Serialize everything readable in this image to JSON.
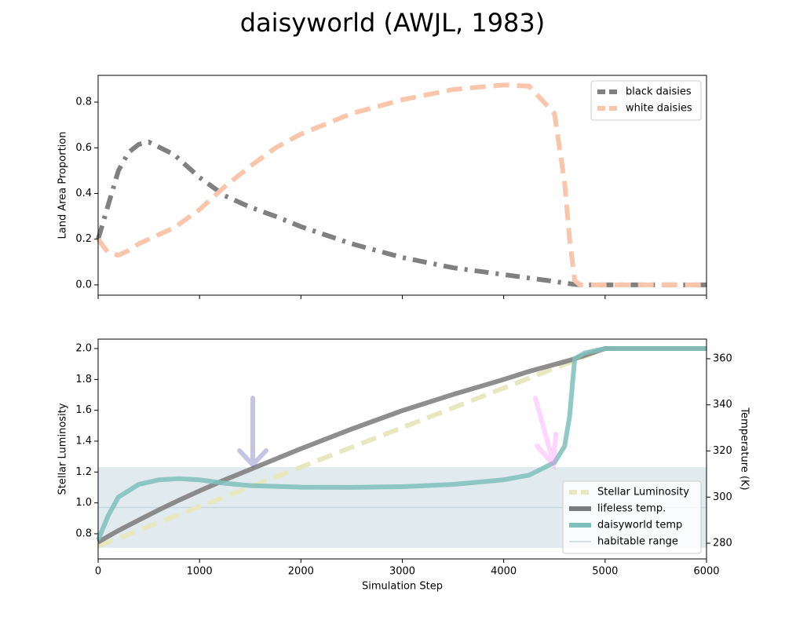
{
  "chart_data": [
    {
      "type": "line",
      "title": "daisyworld (AWJL, 1983)",
      "ylabel": "Land Area Proportion",
      "x": [
        0,
        100,
        200,
        300,
        400,
        500,
        750,
        1000,
        1250,
        1500,
        1750,
        2000,
        2500,
        3000,
        3500,
        4000,
        4250,
        4500,
        4600,
        4650,
        4700,
        4750,
        5000,
        5500,
        6000
      ],
      "series": [
        {
          "name": "black daisies",
          "color": "#808080",
          "dash": "dashdot",
          "values": [
            0.2,
            0.35,
            0.5,
            0.58,
            0.615,
            0.625,
            0.57,
            0.47,
            0.39,
            0.34,
            0.3,
            0.255,
            0.18,
            0.12,
            0.075,
            0.045,
            0.03,
            0.015,
            0.008,
            0.005,
            0.002,
            0,
            0,
            0,
            0
          ]
        },
        {
          "name": "white daisies",
          "color": "#f9c6ab",
          "dash": "dashed",
          "values": [
            0.2,
            0.14,
            0.13,
            0.15,
            0.18,
            0.2,
            0.25,
            0.33,
            0.43,
            0.52,
            0.6,
            0.66,
            0.75,
            0.81,
            0.855,
            0.875,
            0.87,
            0.75,
            0.45,
            0.2,
            0.02,
            0,
            0,
            0,
            0
          ]
        }
      ],
      "xlim": [
        0,
        6000
      ],
      "xticks": [
        0,
        1000,
        2000,
        3000,
        4000,
        5000,
        6000
      ],
      "ylim": [
        -0.045,
        0.917
      ],
      "yticks": [
        {
          "value": 0,
          "label": "0.0"
        },
        0.2,
        0.4,
        0.6,
        0.8
      ],
      "legend": "upper right"
    },
    {
      "type": "line",
      "xlabel": "Simulation Step",
      "ylabel": "Stellar Luminosity",
      "y2label": "Temperature (K)",
      "x": [
        0,
        100,
        200,
        400,
        600,
        800,
        1000,
        1250,
        1500,
        2000,
        2500,
        3000,
        3500,
        4000,
        4250,
        4500,
        4600,
        4650,
        4700,
        4800,
        5000,
        6000
      ],
      "series": [
        {
          "name": "Stellar Luminosity",
          "color": "#e7e8c0",
          "dash": "dashed",
          "values": [
            0.72,
            0.746,
            0.771,
            0.822,
            0.874,
            0.925,
            0.976,
            1.04,
            1.104,
            1.232,
            1.36,
            1.488,
            1.616,
            1.744,
            1.808,
            1.872,
            1.898,
            1.91,
            1.923,
            1.949,
            2.0,
            2.0
          ]
        },
        {
          "name": "lifeless temp.",
          "color": "#7a7a7a",
          "dash": "solid",
          "axis": "y2",
          "values": [
            280.5,
            283,
            285.5,
            290,
            294.5,
            298.7,
            302.7,
            307.5,
            312,
            321,
            329.5,
            337.5,
            344.5,
            351,
            354.5,
            357.5,
            358.7,
            359.3,
            360,
            361.5,
            364.4,
            364.4
          ]
        },
        {
          "name": "daisyworld temp",
          "color": "#7fbfbb",
          "dash": "solid",
          "axis": "y2",
          "values": [
            281.4,
            292,
            300,
            305.5,
            307.5,
            308,
            307.5,
            306,
            305,
            304.3,
            304.2,
            304.5,
            305.5,
            307.5,
            309.5,
            315,
            322,
            335,
            360,
            362.5,
            364.4,
            364.4
          ]
        }
      ],
      "band": {
        "name": "habitable range",
        "color": "#c9d8e0",
        "axis": "y2",
        "range": [
          278,
          313
        ]
      },
      "xlim": [
        0,
        6000
      ],
      "xticks": [
        0,
        1000,
        2000,
        3000,
        4000,
        5000,
        6000
      ],
      "ylim": [
        0.637,
        2.061
      ],
      "yticks": [
        0.8,
        {
          "value": 1,
          "label": "1.0"
        },
        1.2,
        1.4,
        1.6,
        1.8,
        {
          "value": 2,
          "label": "2.0"
        }
      ],
      "y2lim": [
        273.2,
        368.5
      ],
      "y2ticks": [
        280,
        300,
        320,
        340,
        360
      ],
      "legend": "lower right"
    }
  ]
}
